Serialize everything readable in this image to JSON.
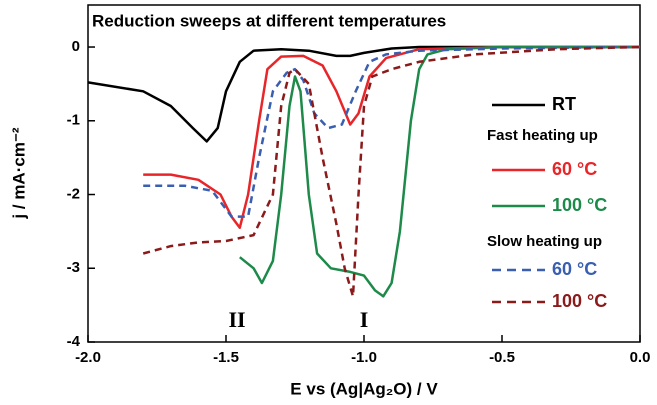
{
  "chart_data": {
    "type": "line",
    "title": "Reduction sweeps at different temperatures",
    "x_label": "E vs (Ag|Ag₂O) / V",
    "y_label": "j / mA·cm⁻²",
    "xlim": [
      -2.0,
      0.0
    ],
    "ylim": [
      -4,
      0.57
    ],
    "xticks": [
      {
        "value": -2.0,
        "label": "-2.0"
      },
      {
        "value": -1.5,
        "label": "-1.5"
      },
      {
        "value": -1.0,
        "label": "-1.0"
      },
      {
        "value": -0.5,
        "label": "-0.5"
      },
      {
        "value": 0.0,
        "label": "0.0"
      }
    ],
    "yticks": [
      0,
      -1,
      -2,
      -3,
      -4
    ],
    "legend_groups": [
      "Fast heating up",
      "Slow heating up"
    ],
    "annotations": [
      {
        "text": "II",
        "x": -1.46,
        "y": -3.73
      },
      {
        "text": "I",
        "x": -1.0,
        "y": -3.73
      }
    ],
    "series": [
      {
        "name": "RT",
        "color": "#000000",
        "style": "solid",
        "x": [
          -2.0,
          -1.8,
          -1.7,
          -1.62,
          -1.57,
          -1.53,
          -1.5,
          -1.45,
          -1.4,
          -1.3,
          -1.2,
          -1.1,
          -1.05,
          -1.0,
          -0.9,
          -0.8,
          -0.5,
          0.0
        ],
        "values": [
          -0.48,
          -0.6,
          -0.8,
          -1.1,
          -1.28,
          -1.1,
          -0.6,
          -0.2,
          -0.05,
          -0.03,
          -0.05,
          -0.12,
          -0.12,
          -0.08,
          -0.02,
          0,
          0,
          0
        ]
      },
      {
        "name": "60 °C",
        "color": "#e8262a",
        "style": "solid",
        "x": [
          -1.8,
          -1.7,
          -1.6,
          -1.52,
          -1.48,
          -1.45,
          -1.42,
          -1.38,
          -1.35,
          -1.3,
          -1.22,
          -1.15,
          -1.1,
          -1.05,
          -1.02,
          -0.98,
          -0.92,
          -0.8,
          -0.5,
          0.0
        ],
        "values": [
          -1.73,
          -1.73,
          -1.8,
          -2.0,
          -2.3,
          -2.45,
          -2.0,
          -1.0,
          -0.3,
          -0.13,
          -0.12,
          -0.25,
          -0.6,
          -1.05,
          -0.9,
          -0.4,
          -0.15,
          -0.03,
          0,
          0
        ]
      },
      {
        "name": "100 °C",
        "color": "#1e8a4a",
        "style": "solid",
        "x": [
          -1.45,
          -1.4,
          -1.37,
          -1.33,
          -1.3,
          -1.27,
          -1.25,
          -1.23,
          -1.2,
          -1.17,
          -1.12,
          -1.05,
          -1.0,
          -0.96,
          -0.93,
          -0.9,
          -0.87,
          -0.83,
          -0.8,
          -0.77,
          -0.7,
          -0.5,
          0.0
        ],
        "values": [
          -2.85,
          -3.0,
          -3.2,
          -2.9,
          -2.0,
          -0.8,
          -0.4,
          -0.6,
          -2.0,
          -2.8,
          -3.0,
          -3.05,
          -3.1,
          -3.3,
          -3.38,
          -3.2,
          -2.5,
          -1.0,
          -0.3,
          -0.1,
          -0.03,
          0,
          0
        ]
      },
      {
        "name": "60 °C",
        "color": "#3a5fb0",
        "style": "dashed",
        "x": [
          -1.8,
          -1.65,
          -1.55,
          -1.48,
          -1.42,
          -1.38,
          -1.33,
          -1.28,
          -1.25,
          -1.22,
          -1.18,
          -1.13,
          -1.08,
          -1.03,
          -0.98,
          -0.92,
          -0.8,
          -0.5,
          0.0
        ],
        "values": [
          -1.88,
          -1.88,
          -1.95,
          -2.3,
          -2.3,
          -1.5,
          -0.6,
          -0.35,
          -0.3,
          -0.45,
          -0.9,
          -1.1,
          -1.05,
          -0.6,
          -0.2,
          -0.1,
          -0.05,
          -0.02,
          0
        ]
      },
      {
        "name": "100 °C",
        "color": "#8b1a1a",
        "style": "dashed",
        "x": [
          -1.8,
          -1.7,
          -1.6,
          -1.5,
          -1.4,
          -1.33,
          -1.3,
          -1.27,
          -1.25,
          -1.2,
          -1.15,
          -1.1,
          -1.07,
          -1.04,
          -1.02,
          -1.0,
          -0.97,
          -0.9,
          -0.8,
          -0.6,
          -0.3,
          0.0
        ],
        "values": [
          -2.8,
          -2.7,
          -2.65,
          -2.63,
          -2.55,
          -2.0,
          -0.8,
          -0.35,
          -0.3,
          -0.5,
          -1.5,
          -2.4,
          -3.0,
          -3.38,
          -2.0,
          -0.8,
          -0.4,
          -0.3,
          -0.2,
          -0.1,
          -0.03,
          0
        ]
      }
    ]
  }
}
